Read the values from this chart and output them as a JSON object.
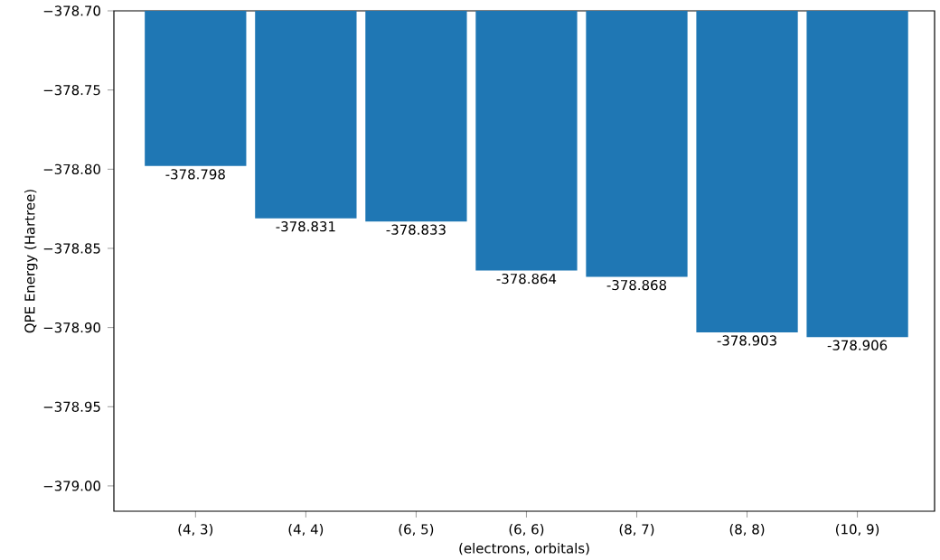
{
  "chart_data": {
    "type": "bar",
    "xlabel": "(electrons, orbitals)",
    "ylabel": "QPE Energy (Hartree)",
    "categories": [
      "(4, 3)",
      "(4, 4)",
      "(6, 5)",
      "(6, 6)",
      "(8, 7)",
      "(8, 8)",
      "(10, 9)"
    ],
    "values": [
      -378.798,
      -378.831,
      -378.833,
      -378.864,
      -378.868,
      -378.903,
      -378.906
    ],
    "value_labels": [
      "-378.798",
      "-378.831",
      "-378.833",
      "-378.864",
      "-378.868",
      "-378.903",
      "-378.906"
    ],
    "color": "#1f77b4",
    "ylim": [
      -379.016,
      -378.7
    ],
    "yticks": [
      {
        "value": -379.0,
        "label": "−379.00"
      },
      {
        "value": -378.95,
        "label": "−378.95"
      },
      {
        "value": -378.9,
        "label": "−378.90"
      },
      {
        "value": -378.85,
        "label": "−378.85"
      },
      {
        "value": -378.8,
        "label": "−378.80"
      },
      {
        "value": -378.75,
        "label": "−378.75"
      },
      {
        "value": -378.7,
        "label": "−378.70"
      }
    ]
  }
}
